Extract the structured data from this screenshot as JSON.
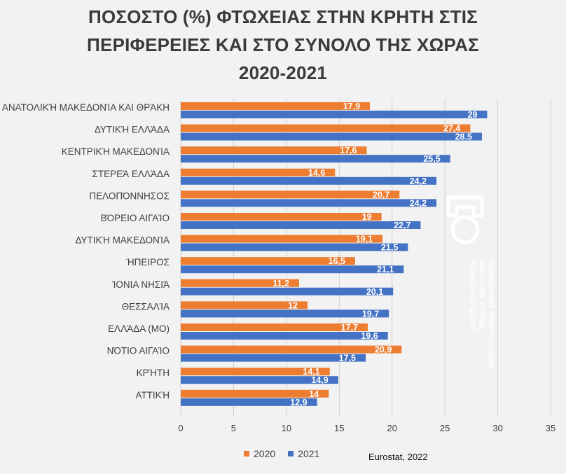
{
  "title_lines": [
    "ΠΟΣΟΣΤΟ (%) ΦΤΩΧΕΙΑΣ ΣΤΗΝ ΚΡΗΤΗ ΣΤΙΣ",
    "ΠΕΡΙΦΕΡΕΙΕΣ ΚΑΙ ΣΤΟ ΣΥΝΟΛΟ ΤΗΣ ΧΩΡΑΣ",
    "2020-2021"
  ],
  "source": "Eurostat, 2022",
  "colors": {
    "s2020": "#ed7d31",
    "s2021": "#4472c4",
    "grid": "#d0d0d0",
    "bg": "#f2f2f2"
  },
  "logo": {
    "icon": "regional-observatory-logo-icon",
    "text_lines": [
      "περιφερειακό παρατηρητήριο",
      "κοινωνικής ένταξης",
      "περιφέρειας κρήτης"
    ]
  },
  "chart_data": {
    "type": "bar",
    "orientation": "horizontal",
    "title": "ΠΟΣΟΣΤΟ (%) ΦΤΩΧΕΙΑΣ ΣΤΗΝ ΚΡΗΤΗ ΣΤΙΣ ΠΕΡΙΦΕΡΕΙΕΣ ΚΑΙ ΣΤΟ ΣΥΝΟΛΟ ΤΗΣ ΧΩΡΑΣ 2020-2021",
    "categories": [
      "ΑΝΑΤΟΛΙΚΉ ΜΑΚΕΔΟΝΊΑ ΚΑΙ ΘΡΆΚΗ",
      "ΔΥΤΙΚΉ ΕΛΛΆΔΑ",
      "ΚΕΝΤΡΙΚΉ ΜΑΚΕΔΟΝΊΑ",
      "ΣΤΕΡΕΆ ΕΛΛΆΔΑ",
      "ΠΕΛΟΠΌΝΝΗΣΟΣ",
      "ΒΌΡΕΙΟ ΑΙΓΑΊΟ",
      "ΔΥΤΙΚΉ ΜΑΚΕΔΟΝΊΑ",
      "ΉΠΕΙΡΟΣ",
      "ΊΟΝΙΑ ΝΗΣΙΆ",
      "ΘΕΣΣΑΛΊΑ",
      "ΕΛΛΆΔΑ (ΜΟ)",
      "ΝΌΤΙΟ ΑΙΓΑΊΟ",
      "ΚΡΉΤΗ",
      "ΑΤΤΙΚΉ"
    ],
    "series": [
      {
        "name": "2020",
        "values": [
          17.9,
          27.4,
          17.6,
          14.6,
          20.7,
          19,
          19.1,
          16.5,
          11.2,
          12,
          17.7,
          20.9,
          14.1,
          14
        ],
        "labels": [
          "17,9",
          "27,4",
          "17,6",
          "14,6",
          "20,7",
          "19",
          "19,1",
          "16,5",
          "11,2",
          "12",
          "17,7",
          "20,9",
          "14,1",
          "14"
        ]
      },
      {
        "name": "2021",
        "values": [
          29,
          28.5,
          25.5,
          24.2,
          24.2,
          22.7,
          21.5,
          21.1,
          20.1,
          19.7,
          19.6,
          17.5,
          14.9,
          12.9
        ],
        "labels": [
          "29",
          "28.5",
          "25,5",
          "24,2",
          "24,2",
          "22,7",
          "21,5",
          "21,1",
          "20,1",
          "19,7",
          "19,6",
          "17,5",
          "14,9",
          "12,9"
        ]
      }
    ],
    "xlim": [
      0,
      35
    ],
    "xticks": [
      "0",
      "5",
      "10",
      "15",
      "20",
      "25",
      "30",
      "35"
    ],
    "grid": true,
    "legend": "bottom"
  }
}
